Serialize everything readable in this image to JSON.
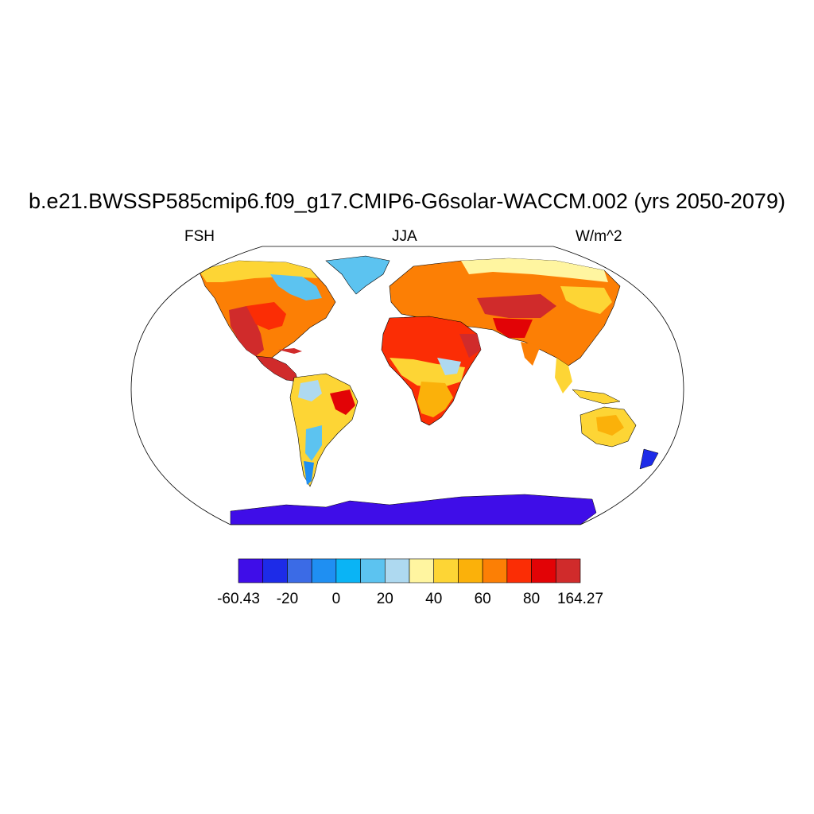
{
  "title": "b.e21.BWSSP585cmip6.f09_g17.CMIP6-G6solar-WACCM.002 (yrs 2050-2079)",
  "left_label": "FSH",
  "center_label": "JJA",
  "right_label": "W/m^2",
  "colorbar": {
    "colors": [
      "#3f0de8",
      "#1d2be8",
      "#3b6be6",
      "#1f8ff2",
      "#0ab4f5",
      "#5cc3f0",
      "#aed9f0",
      "#fff5a0",
      "#fdd535",
      "#fbb10a",
      "#fc7f05",
      "#fb2d05",
      "#e20306",
      "#d02b2b"
    ],
    "tick_labels": [
      "-60.43",
      "-20",
      "0",
      "20",
      "40",
      "60",
      "80",
      "164.27"
    ]
  },
  "legend_colors": {
    "ocean": "#ffffff",
    "antarctica": "#3f0de8",
    "coastline": "#000000"
  }
}
